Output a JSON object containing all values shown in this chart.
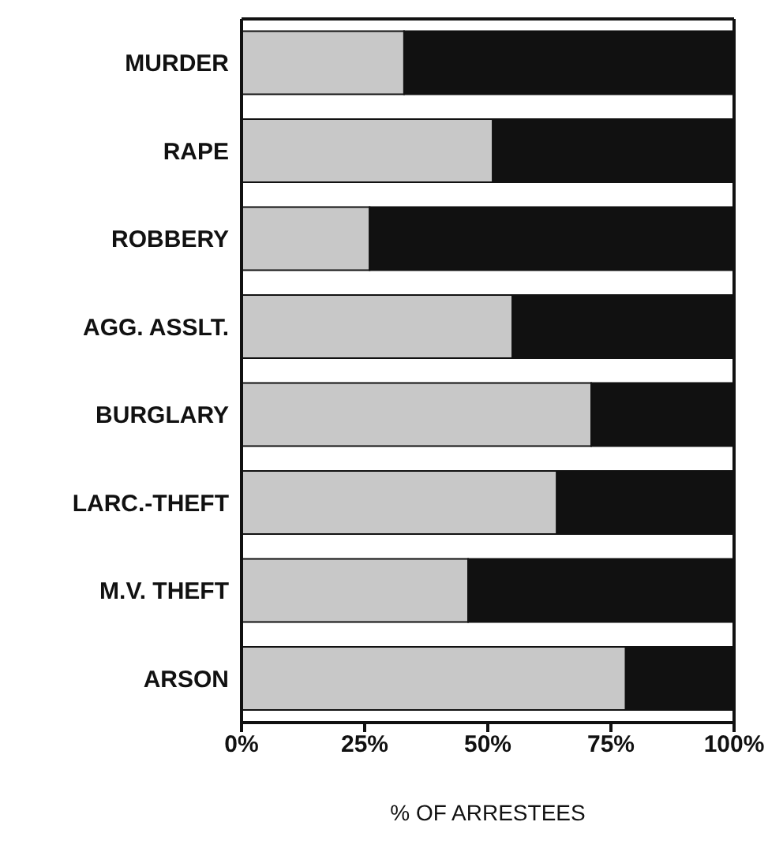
{
  "chart_data": {
    "type": "bar",
    "orientation": "horizontal",
    "stacked": true,
    "xlabel": "% OF ARRESTEES",
    "categories": [
      "MURDER",
      "RAPE",
      "ROBBERY",
      "AGG. ASSLT.",
      "BURGLARY",
      "LARC.-THEFT",
      "M.V. THEFT",
      "ARSON"
    ],
    "series": [
      {
        "color": "#c8c8c8",
        "values": [
          33,
          51,
          26,
          55,
          71,
          64,
          46,
          78
        ]
      },
      {
        "color": "#111111",
        "values": [
          67,
          49,
          74,
          45,
          29,
          36,
          54,
          22
        ]
      }
    ],
    "xlim": [
      0,
      100
    ],
    "xticks": [
      {
        "value": 0,
        "label": "0%"
      },
      {
        "value": 25,
        "label": "25%"
      },
      {
        "value": 50,
        "label": "50%"
      },
      {
        "value": 75,
        "label": "75%"
      },
      {
        "value": 100,
        "label": "100%"
      }
    ],
    "grid": false,
    "legend": false
  }
}
